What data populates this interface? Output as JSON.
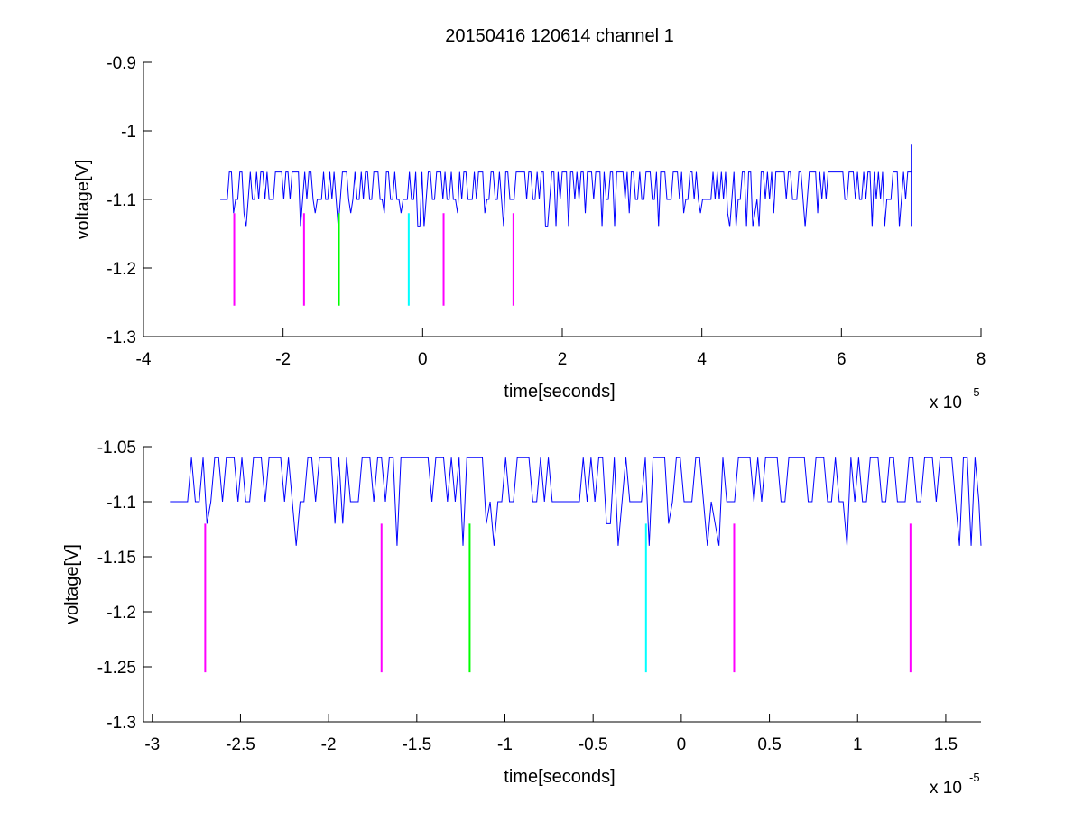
{
  "title": "20150416 120614 channel 1",
  "chart_data": [
    {
      "type": "line",
      "title": "20150416 120614 channel 1",
      "xlabel": "time[seconds]",
      "ylabel": "voltage[V]",
      "x_multiplier_label": "x 10",
      "x_multiplier_exponent": "-5",
      "xlim": [
        -4,
        8
      ],
      "ylim": [
        -1.3,
        -0.9
      ],
      "xticks": [
        -4,
        -2,
        0,
        2,
        4,
        6,
        8
      ],
      "xtick_labels": [
        "-4",
        "-2",
        "0",
        "2",
        "4",
        "6",
        "8"
      ],
      "yticks": [
        -1.3,
        -1.2,
        -1.1,
        -1.0,
        -0.9
      ],
      "ytick_labels": [
        "-1.3",
        "-1.2",
        "-1.1",
        "-1",
        "-0.9"
      ],
      "grid": false,
      "series": [
        {
          "color": "#0000ff",
          "signal": {
            "x_start": -2.9,
            "x_end": 7.0,
            "baseline": -1.1,
            "high_level": -1.06,
            "low_levels": [
              -1.12,
              -1.14
            ],
            "end_spike": -1.02
          }
        }
      ],
      "markers": [
        {
          "x": -2.7,
          "y_top": -1.12,
          "y_bottom": -1.255,
          "color": "#ff00ff"
        },
        {
          "x": -1.7,
          "y_top": -1.12,
          "y_bottom": -1.255,
          "color": "#ff00ff"
        },
        {
          "x": -1.2,
          "y_top": -1.12,
          "y_bottom": -1.255,
          "color": "#00ff00"
        },
        {
          "x": -0.2,
          "y_top": -1.12,
          "y_bottom": -1.255,
          "color": "#00ffff"
        },
        {
          "x": 0.3,
          "y_top": -1.12,
          "y_bottom": -1.255,
          "color": "#ff00ff"
        },
        {
          "x": 1.3,
          "y_top": -1.12,
          "y_bottom": -1.255,
          "color": "#ff00ff"
        }
      ]
    },
    {
      "type": "line",
      "title": "",
      "xlabel": "time[seconds]",
      "ylabel": "voltage[V]",
      "x_multiplier_label": "x 10",
      "x_multiplier_exponent": "-5",
      "xlim": [
        -3.05,
        1.7
      ],
      "ylim": [
        -1.3,
        -1.05
      ],
      "xticks": [
        -3,
        -2.5,
        -2,
        -1.5,
        -1,
        -0.5,
        0,
        0.5,
        1,
        1.5
      ],
      "xtick_labels": [
        "-3",
        "-2.5",
        "-2",
        "-1.5",
        "-1",
        "-0.5",
        "0",
        "0.5",
        "1",
        "1.5"
      ],
      "yticks": [
        -1.3,
        -1.25,
        -1.2,
        -1.15,
        -1.1,
        -1.05
      ],
      "ytick_labels": [
        "-1.3",
        "-1.25",
        "-1.2",
        "-1.15",
        "-1.1",
        "-1.05"
      ],
      "grid": false,
      "series": [
        {
          "color": "#0000ff",
          "signal": {
            "x_start": -2.9,
            "x_end": 1.7,
            "baseline": -1.1,
            "high_level": -1.06,
            "low_levels": [
              -1.12,
              -1.14
            ]
          }
        }
      ],
      "markers": [
        {
          "x": -2.7,
          "y_top": -1.12,
          "y_bottom": -1.255,
          "color": "#ff00ff"
        },
        {
          "x": -1.7,
          "y_top": -1.12,
          "y_bottom": -1.255,
          "color": "#ff00ff"
        },
        {
          "x": -1.2,
          "y_top": -1.12,
          "y_bottom": -1.255,
          "color": "#00ff00"
        },
        {
          "x": -0.2,
          "y_top": -1.12,
          "y_bottom": -1.255,
          "color": "#00ffff"
        },
        {
          "x": 0.3,
          "y_top": -1.12,
          "y_bottom": -1.255,
          "color": "#ff00ff"
        },
        {
          "x": 1.3,
          "y_top": -1.12,
          "y_bottom": -1.255,
          "color": "#ff00ff"
        }
      ]
    }
  ]
}
